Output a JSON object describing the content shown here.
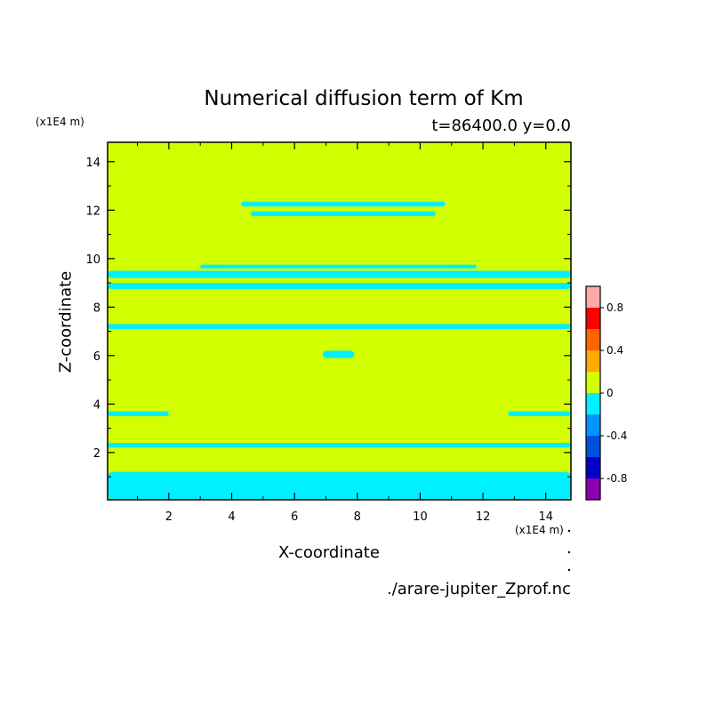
{
  "chart_data": {
    "type": "heatmap",
    "title": "Numerical diffusion term of Km",
    "subtitle": "t=86400.0 y=0.0",
    "xlabel": "X-coordinate",
    "ylabel": "Z-coordinate",
    "x_unit": "(x1E4 m)",
    "y_unit": "(x1E4 m)",
    "source_file": "./arare-jupiter_Zprof.nc",
    "xlim": [
      0.05,
      14.8
    ],
    "ylim": [
      0.05,
      14.8
    ],
    "x_ticks": [
      2,
      4,
      6,
      8,
      10,
      12,
      14
    ],
    "y_ticks": [
      2,
      4,
      6,
      8,
      10,
      12,
      14
    ],
    "x_tick_labels": [
      "2",
      "4",
      "6",
      "8",
      "10",
      "12",
      "14"
    ],
    "y_tick_labels": [
      "2",
      "4",
      "6",
      "8",
      "10",
      "12",
      "14"
    ],
    "colorbar": {
      "levels": [
        -1.0,
        -0.8,
        -0.6,
        -0.4,
        -0.2,
        0,
        0.2,
        0.4,
        0.6,
        0.8,
        1.0
      ],
      "colors": [
        "#8b00b0",
        "#0000c8",
        "#0050e0",
        "#0096ff",
        "#00f0ff",
        "#d2ff00",
        "#ffaa00",
        "#ff6400",
        "#ff0000",
        "#ffaaaa"
      ],
      "tick_values": [
        -0.8,
        -0.4,
        0,
        0.4,
        0.8
      ],
      "tick_labels": [
        "-0.8",
        "-0.4",
        "0",
        "0.4",
        "0.8"
      ]
    },
    "background_color": "#d2ff00",
    "negative_color": "#00f0ff",
    "regions_negative": [
      {
        "x": [
          4.3,
          10.8
        ],
        "z": [
          12.15,
          12.35
        ]
      },
      {
        "x": [
          4.6,
          10.5
        ],
        "z": [
          11.75,
          11.95
        ]
      },
      {
        "x": [
          0.05,
          14.8
        ],
        "z": [
          9.2,
          9.5
        ]
      },
      {
        "x": [
          3.0,
          11.8
        ],
        "z": [
          9.6,
          9.75
        ]
      },
      {
        "x": [
          0.05,
          14.8
        ],
        "z": [
          8.75,
          9.0
        ]
      },
      {
        "x": [
          0.05,
          14.8
        ],
        "z": [
          7.1,
          7.3
        ]
      },
      {
        "x": [
          6.9,
          7.9
        ],
        "z": [
          5.9,
          6.2
        ]
      },
      {
        "x": [
          0.05,
          2.0
        ],
        "z": [
          3.5,
          3.7
        ]
      },
      {
        "x": [
          12.8,
          14.8
        ],
        "z": [
          3.5,
          3.7
        ]
      },
      {
        "x": [
          0.05,
          14.8
        ],
        "z": [
          2.2,
          2.4
        ]
      },
      {
        "x": [
          0.05,
          14.8
        ],
        "z": [
          0.05,
          1.2
        ]
      }
    ]
  }
}
